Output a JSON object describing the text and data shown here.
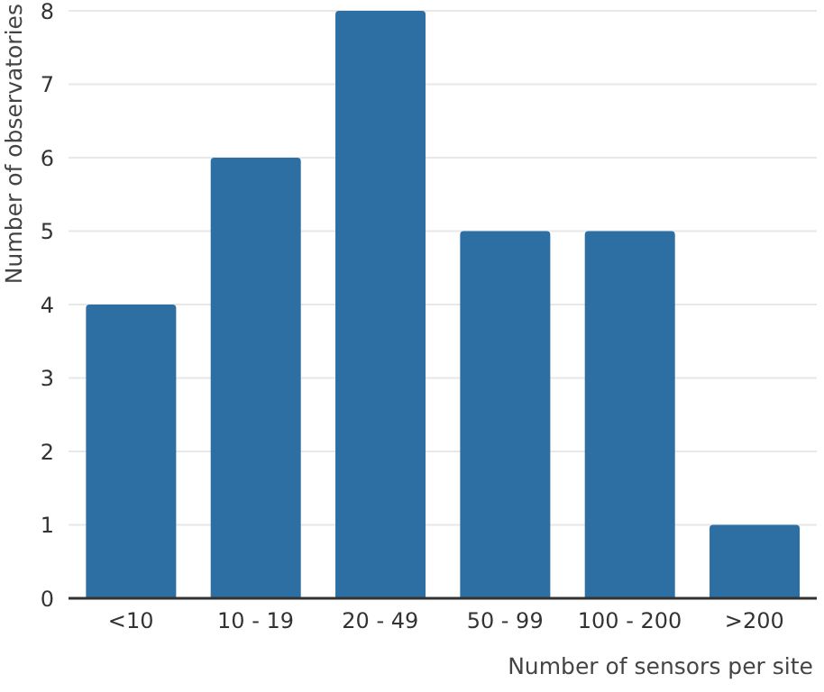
{
  "chart_data": {
    "type": "bar",
    "xlabel": "Number of sensors per site",
    "ylabel": "Number of observatories",
    "categories": [
      "<10",
      "10 - 19",
      "20 - 49",
      "50 - 99",
      "100 - 200",
      ">200"
    ],
    "values": [
      4,
      6,
      8,
      5,
      5,
      1
    ],
    "color": "#2e6fa3",
    "ylim": [
      0,
      8
    ],
    "yticks": [
      0,
      1,
      2,
      3,
      4,
      5,
      6,
      7,
      8
    ],
    "grid": "y"
  }
}
